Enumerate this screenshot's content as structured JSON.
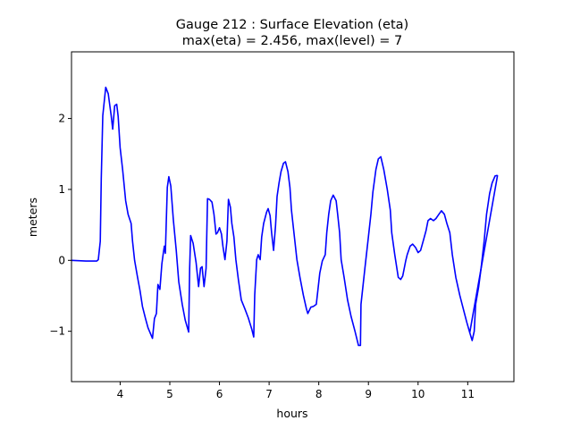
{
  "chart_data": {
    "type": "line",
    "title": "Gauge 212 : Surface Elevation (eta)",
    "subtitle": "max(eta) =   2.456,    max(level) = 7",
    "xlabel": "hours",
    "ylabel": "meters",
    "xlim": [
      3.02,
      11.93
    ],
    "ylim": [
      -1.71,
      2.94
    ],
    "xticks": [
      4,
      5,
      6,
      7,
      8,
      9,
      10,
      11
    ],
    "xtick_labels": [
      "4",
      "5",
      "6",
      "7",
      "8",
      "9",
      "10",
      "11"
    ],
    "yticks": [
      -1,
      0,
      1,
      2
    ],
    "ytick_labels": [
      "−1",
      "0",
      "1",
      "2"
    ],
    "grid": false,
    "series": [
      {
        "name": "eta",
        "color": "#0000ff",
        "x": [
          3.02,
          3.31,
          3.53,
          3.56,
          3.6,
          3.62,
          3.65,
          3.71,
          3.76,
          3.82,
          3.85,
          3.89,
          3.93,
          3.96,
          4.0,
          4.05,
          4.11,
          4.16,
          4.22,
          4.25,
          4.29,
          4.35,
          4.4,
          4.45,
          4.51,
          4.56,
          4.62,
          4.65,
          4.69,
          4.73,
          4.76,
          4.8,
          4.84,
          4.87,
          4.89,
          4.91,
          4.95,
          4.98,
          5.02,
          5.07,
          5.13,
          5.18,
          5.25,
          5.31,
          5.38,
          5.4,
          5.42,
          5.47,
          5.53,
          5.58,
          5.62,
          5.65,
          5.69,
          5.73,
          5.76,
          5.8,
          5.85,
          5.89,
          5.93,
          5.96,
          6.0,
          6.04,
          6.07,
          6.11,
          6.15,
          6.18,
          6.22,
          6.25,
          6.29,
          6.33,
          6.38,
          6.44,
          6.51,
          6.58,
          6.65,
          6.69,
          6.71,
          6.75,
          6.78,
          6.82,
          6.85,
          6.89,
          6.95,
          6.98,
          7.02,
          7.05,
          7.09,
          7.13,
          7.16,
          7.2,
          7.24,
          7.29,
          7.33,
          7.38,
          7.42,
          7.45,
          7.51,
          7.56,
          7.62,
          7.69,
          7.75,
          7.78,
          7.84,
          7.89,
          7.95,
          7.98,
          8.02,
          8.07,
          8.13,
          8.16,
          8.2,
          8.24,
          8.29,
          8.35,
          8.38,
          8.42,
          8.45,
          8.51,
          8.58,
          8.65,
          8.73,
          8.8,
          8.84,
          8.85,
          8.93,
          9.0,
          9.05,
          9.09,
          9.15,
          9.2,
          9.25,
          9.31,
          9.38,
          9.44,
          9.47,
          9.53,
          9.6,
          9.65,
          9.69,
          9.75,
          9.78,
          9.84,
          9.89,
          9.95,
          10.0,
          10.05,
          10.11,
          10.16,
          10.2,
          10.25,
          10.31,
          10.36,
          10.42,
          10.47,
          10.53,
          10.58,
          10.64,
          10.69,
          10.76,
          10.84,
          10.91,
          10.98,
          11.04,
          11.09,
          11.13,
          11.16,
          11.22,
          11.27,
          11.33,
          11.38,
          11.44,
          11.49,
          11.55,
          11.6
        ],
        "y": [
          0.0,
          -0.01,
          -0.01,
          0.01,
          0.27,
          1.15,
          2.04,
          2.44,
          2.35,
          2.04,
          1.85,
          2.18,
          2.2,
          2.03,
          1.59,
          1.28,
          0.84,
          0.65,
          0.52,
          0.27,
          0.0,
          -0.24,
          -0.43,
          -0.65,
          -0.82,
          -0.95,
          -1.05,
          -1.1,
          -0.82,
          -0.75,
          -0.34,
          -0.41,
          -0.05,
          0.11,
          0.2,
          0.1,
          1.03,
          1.18,
          1.05,
          0.58,
          0.14,
          -0.3,
          -0.62,
          -0.84,
          -1.01,
          -0.11,
          0.35,
          0.24,
          -0.03,
          -0.37,
          -0.11,
          -0.09,
          -0.37,
          -0.11,
          0.87,
          0.86,
          0.82,
          0.65,
          0.37,
          0.39,
          0.46,
          0.37,
          0.2,
          0.01,
          0.27,
          0.86,
          0.75,
          0.52,
          0.33,
          0.01,
          -0.27,
          -0.56,
          -0.68,
          -0.81,
          -0.97,
          -1.08,
          -0.49,
          0.01,
          0.08,
          0.01,
          0.33,
          0.52,
          0.68,
          0.73,
          0.63,
          0.39,
          0.14,
          0.49,
          0.9,
          1.09,
          1.25,
          1.37,
          1.39,
          1.25,
          1.03,
          0.71,
          0.33,
          0.01,
          -0.24,
          -0.49,
          -0.68,
          -0.75,
          -0.66,
          -0.65,
          -0.62,
          -0.43,
          -0.18,
          -0.01,
          0.08,
          0.39,
          0.65,
          0.84,
          0.92,
          0.84,
          0.65,
          0.39,
          0.01,
          -0.24,
          -0.56,
          -0.79,
          -1.0,
          -1.2,
          -1.2,
          -0.62,
          -0.11,
          0.33,
          0.65,
          0.96,
          1.28,
          1.43,
          1.46,
          1.28,
          1.0,
          0.71,
          0.39,
          0.08,
          -0.24,
          -0.27,
          -0.22,
          -0.01,
          0.08,
          0.2,
          0.23,
          0.18,
          0.11,
          0.14,
          0.29,
          0.42,
          0.56,
          0.59,
          0.56,
          0.59,
          0.65,
          0.7,
          0.65,
          0.52,
          0.39,
          0.08,
          -0.24,
          -0.49,
          -0.68,
          -0.87,
          -1.02,
          -1.13,
          -1.0,
          -0.62,
          -0.37,
          -0.11,
          0.27,
          0.65,
          0.94,
          1.09,
          1.19,
          1.2
        ]
      },
      {
        "name": "eta-return-segment",
        "color": "#0000ff",
        "x": [
          11.04,
          11.6
        ],
        "y": [
          -1.02,
          1.2
        ]
      }
    ]
  }
}
